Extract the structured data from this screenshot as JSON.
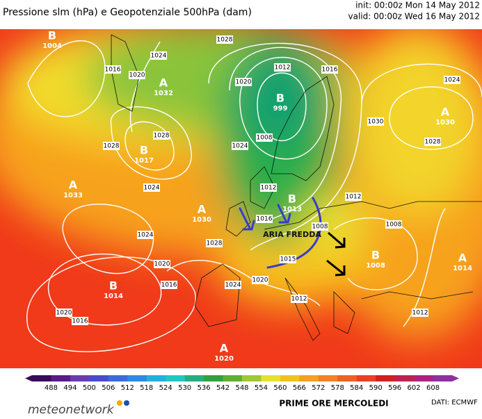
{
  "header": {
    "title": "Pressione slm (hPa) e Geopotenziale 500hPa (dam)",
    "init": "init: 00:00z Mon 14 May 2012",
    "valid": "valid: 00:00z Wed 16 May 2012"
  },
  "map": {
    "centers": [
      {
        "label": "B",
        "value": "1004"
      },
      {
        "label": "A",
        "value": "1032"
      },
      {
        "label": "B",
        "value": "999"
      },
      {
        "label": "B",
        "value": "1017"
      },
      {
        "label": "A",
        "value": "1033"
      },
      {
        "label": "A",
        "value": "1030"
      },
      {
        "label": "B",
        "value": "1013"
      },
      {
        "label": "B",
        "value": "1014"
      },
      {
        "label": "A",
        "value": "1020"
      },
      {
        "label": "B",
        "value": "1008"
      },
      {
        "label": "A",
        "value": "1014"
      },
      {
        "label": "A",
        "value": "1030"
      }
    ],
    "isobar_labels": [
      "1028",
      "1024",
      "1016",
      "1020",
      "1012",
      "1016",
      "1020",
      "1024",
      "1008",
      "1028",
      "1028",
      "1024",
      "1030",
      "1028",
      "1024",
      "1012",
      "1012",
      "1016",
      "1008",
      "1008",
      "1024",
      "1028",
      "1020",
      "1016",
      "1020",
      "1024",
      "1015",
      "1012",
      "1012",
      "1016",
      "1020"
    ],
    "annotation": "ARIA FREDDA"
  },
  "colorbar": {
    "ticks": [
      "488",
      "494",
      "500",
      "506",
      "512",
      "518",
      "524",
      "530",
      "536",
      "542",
      "548",
      "554",
      "560",
      "566",
      "572",
      "578",
      "584",
      "590",
      "596",
      "602",
      "608"
    ]
  },
  "footer": {
    "brand": "meteonetwork",
    "caption": "PRIME ORE MERCOLEDI",
    "source": "DATI:  ECMWF"
  }
}
